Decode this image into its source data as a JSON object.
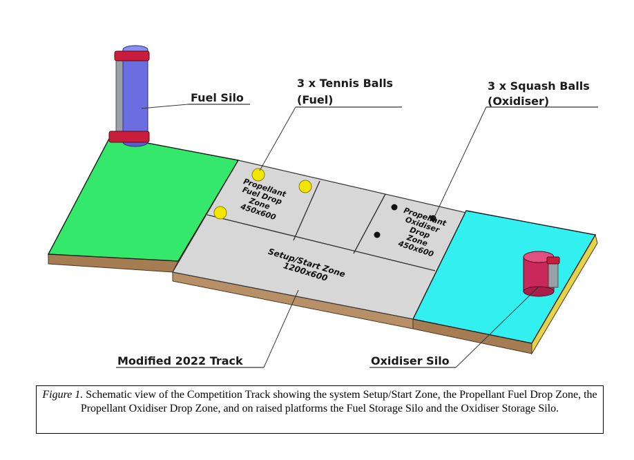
{
  "labels": {
    "fuel_silo": "Fuel Silo",
    "tennis_title": "3 x Tennis Balls",
    "tennis_sub": "(Fuel)",
    "squash_title": "3 x Squash Balls",
    "squash_sub": "(Oxidiser)",
    "track": "Modified 2022 Track",
    "oxidiser_silo": "Oxidiser Silo"
  },
  "zones": {
    "fuel_drop": [
      "Propellant",
      "Fuel Drop",
      "Zone",
      "450x600"
    ],
    "oxidiser_drop": [
      "Propellant",
      "Oxidiser",
      "Drop",
      "Zone",
      "450x600"
    ],
    "setup": [
      "Setup/Start Zone",
      "1200x600"
    ]
  },
  "caption": {
    "figure_label": "Figure 1.",
    "text": "Schematic view of the Competition Track showing the system Setup/Start Zone, the Propellant Fuel Drop Zone, the Propellant Oxidiser Drop Zone, and on raised platforms the Fuel Storage Silo and the Oxidiser Storage Silo."
  },
  "colors": {
    "left_platform": "#33e86b",
    "right_platform": "#33f0f0",
    "track_floor": "#d7d7d7",
    "wood_edge": "#a67c52",
    "fuel_silo": "#6a6ee0",
    "silo_clamp": "#c81e3c",
    "oxidiser_silo": "#c8285a",
    "tennis_ball": "#f2e600",
    "squash_ball": "#111111"
  }
}
